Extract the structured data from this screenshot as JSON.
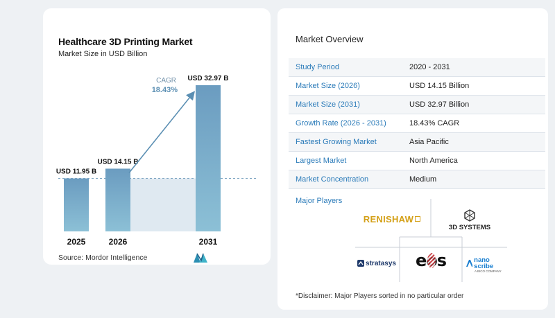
{
  "chart": {
    "title": "Healthcare 3D Printing Market",
    "subtitle": "Market Size in USD Billion",
    "source": "Source:  Mordor Intelligence",
    "cagr_label": "CAGR",
    "cagr_value": "18.43%",
    "accent_color": "#5b8fb3",
    "bar_gradient_top": "#6b9cc0",
    "bar_gradient_bottom": "#8fc2d8",
    "projection_fill": "#dfe9f1"
  },
  "chart_data": {
    "type": "bar",
    "categories": [
      "2025",
      "2026",
      "2031"
    ],
    "values": [
      11.95,
      14.15,
      32.97
    ],
    "data_labels": [
      "USD 11.95 B",
      "USD 14.15 B",
      "USD 32.97 B"
    ],
    "title": "Healthcare 3D Printing Market",
    "subtitle": "Market Size in USD Billion",
    "xlabel": "",
    "ylabel": "",
    "ylim": [
      0,
      32.97
    ],
    "grid": false,
    "legend": "none"
  },
  "overview": {
    "title": "Market Overview",
    "rows": [
      {
        "key": "Study Period",
        "value": "2020 - 2031"
      },
      {
        "key": "Market Size (2026)",
        "value": "USD 14.15 Billion"
      },
      {
        "key": "Market Size (2031)",
        "value": "USD 32.97 Billion"
      },
      {
        "key": "Growth Rate (2026 - 2031)",
        "value": "18.43% CAGR"
      },
      {
        "key": "Fastest Growing Market",
        "value": "Asia Pacific"
      },
      {
        "key": "Largest Market",
        "value": "North America"
      },
      {
        "key": "Market Concentration",
        "value": "Medium"
      }
    ],
    "players_title": "Major Players",
    "players": {
      "renishaw": "RENISHAW",
      "systems": "3D SYSTEMS",
      "stratasys": "stratasys",
      "eos": "eos",
      "nanoscribe": "nano scribe",
      "nanoscribe_sub": "A BICO COMPANY"
    },
    "disclaimer": "*Disclaimer: Major Players sorted in no particular order"
  }
}
